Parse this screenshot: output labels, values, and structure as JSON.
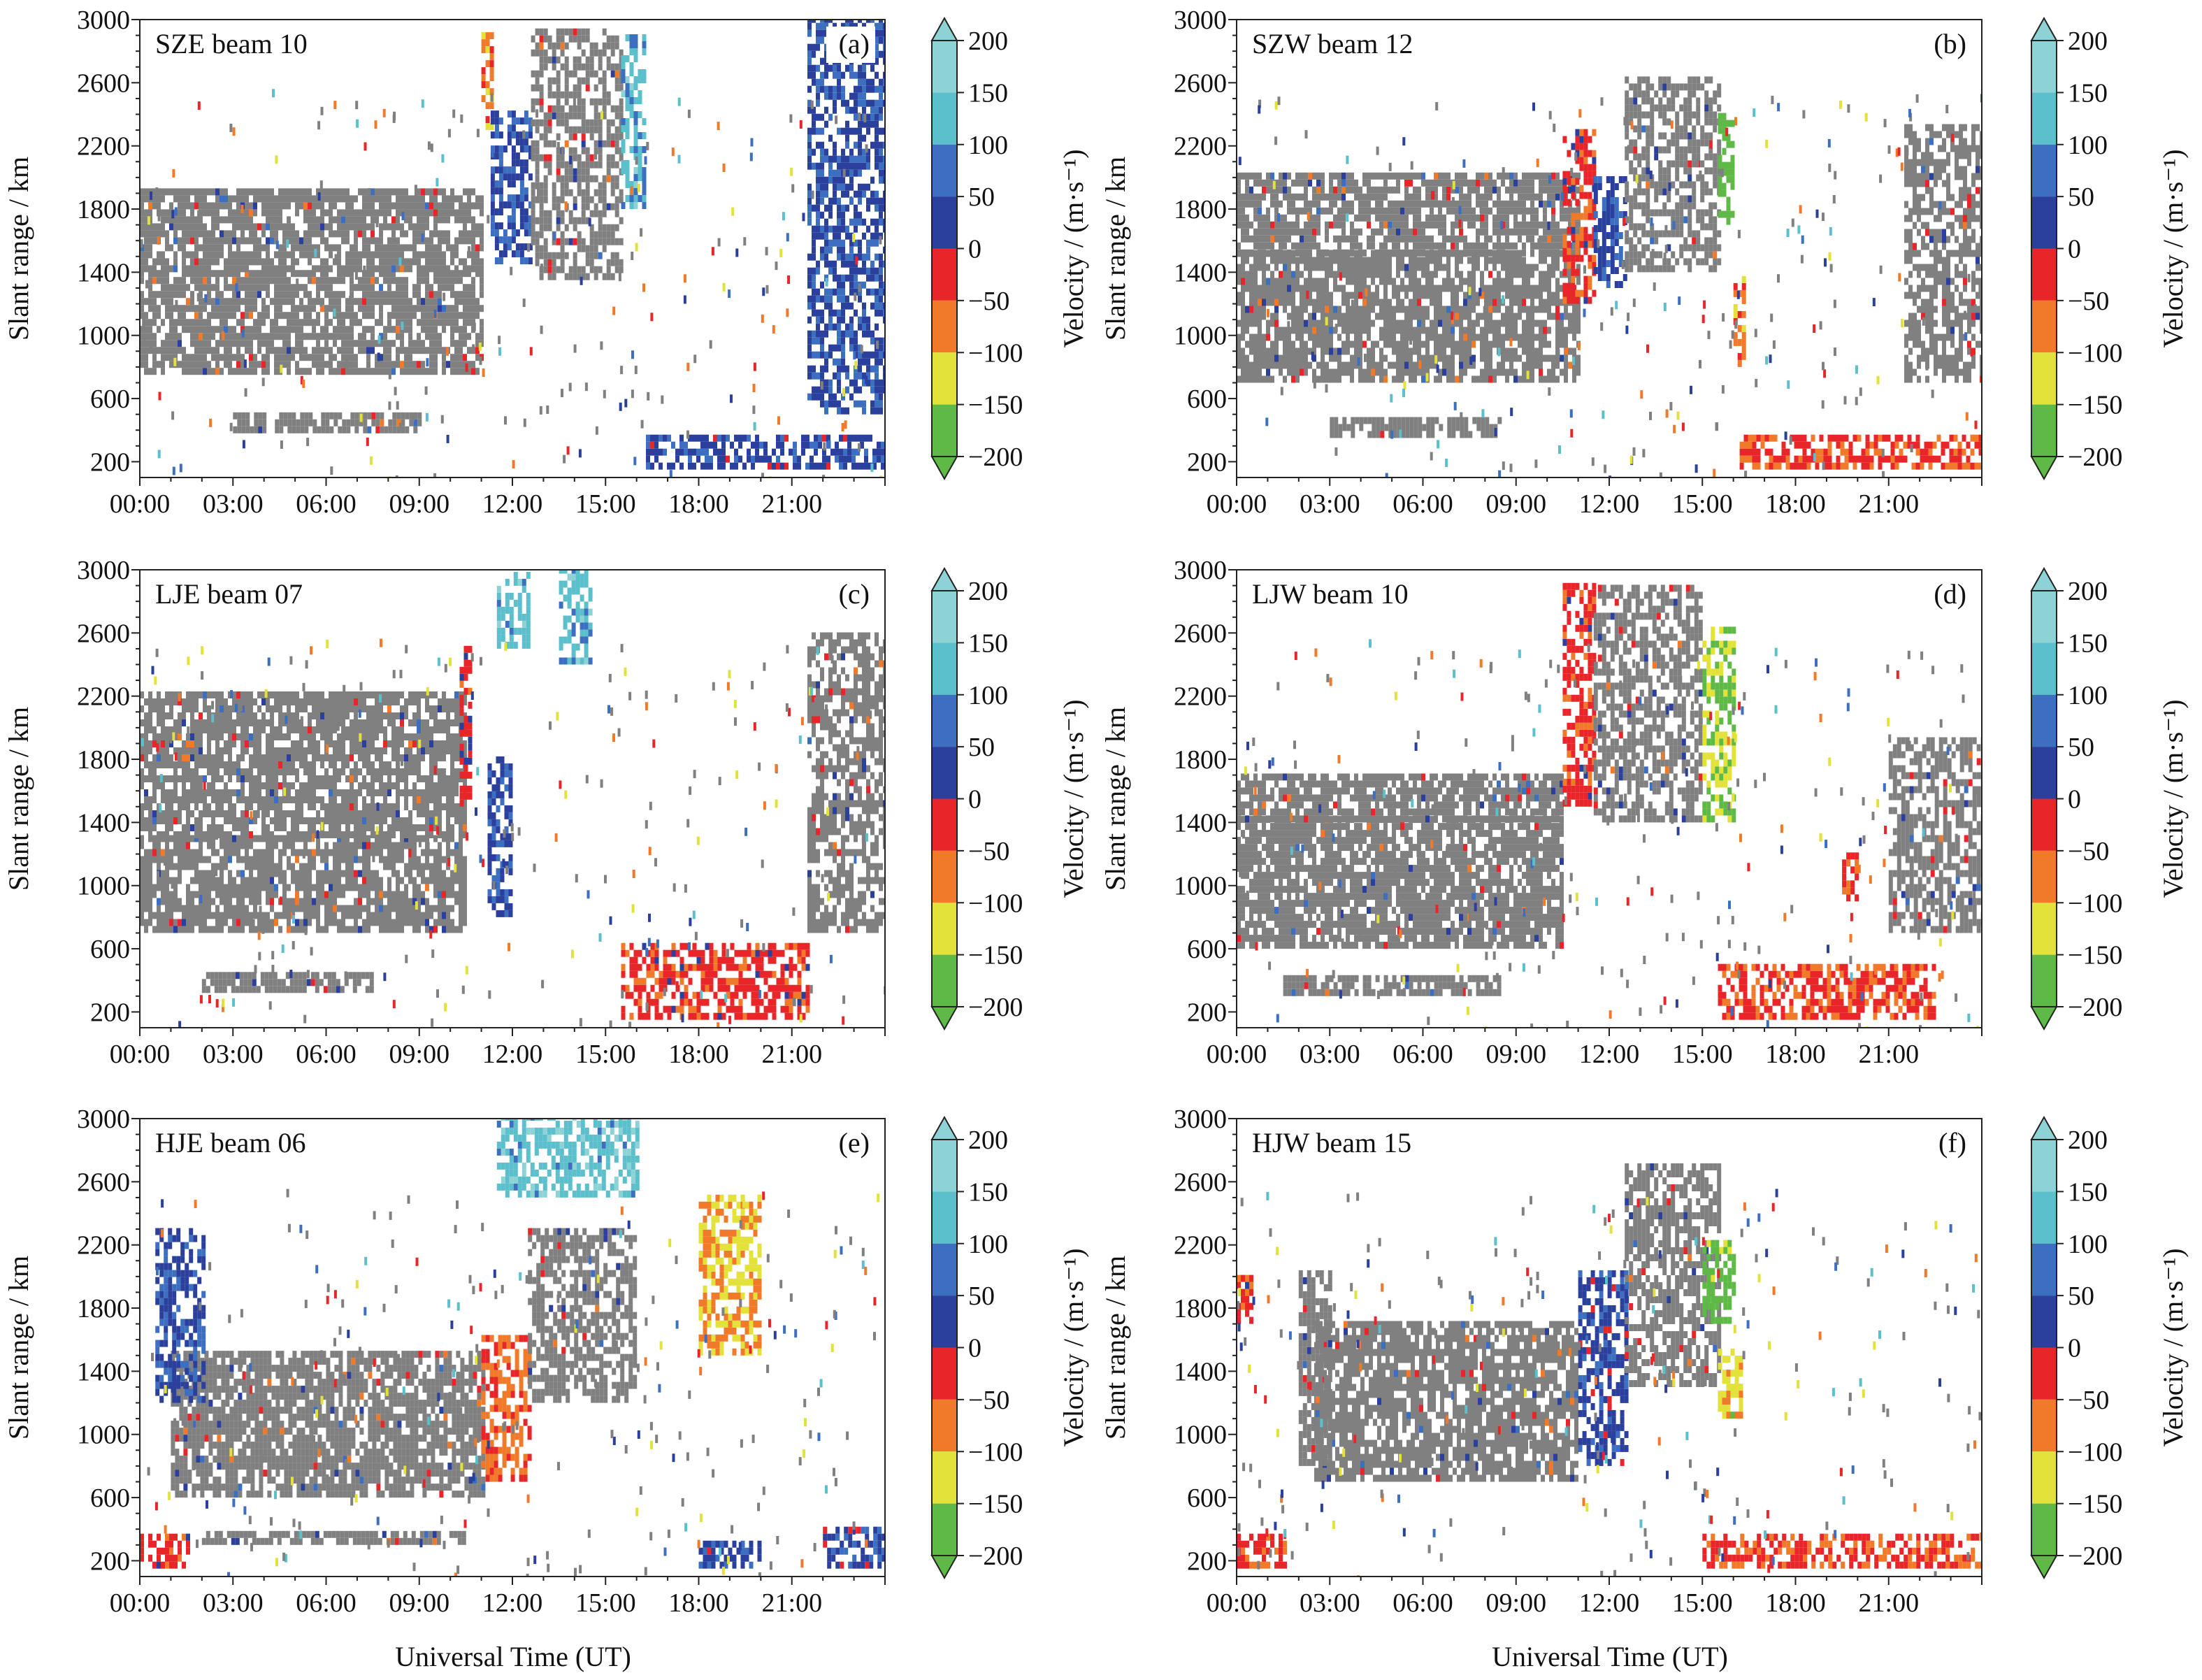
{
  "figure": {
    "xlabel": "Universal Time (UT)",
    "colorbar": {
      "label": "Velocity / (m·s⁻¹)",
      "ticks": [
        "200",
        "150",
        "100",
        "50",
        "0",
        "−50",
        "−100",
        "−150",
        "−200"
      ],
      "colors": [
        "#8dd3d5",
        "#5bbfcc",
        "#3d6fc0",
        "#2b3f9c",
        "#e8262a",
        "#f07a2a",
        "#e2e23a",
        "#5fb946"
      ],
      "extend_top_color": "#8dd3d5",
      "extend_bottom_color": "#5fb946"
    },
    "ground_scatter_color": "#808080"
  },
  "chart_data": [
    {
      "type": "heatmap",
      "panel": "(a)",
      "title": "SZE beam 10",
      "ylabel": "Slant range / km",
      "xlim": [
        "00:00",
        "24:00"
      ],
      "ylim": [
        100,
        3000
      ],
      "xticks": [
        "00:00",
        "03:00",
        "06:00",
        "09:00",
        "12:00",
        "15:00",
        "18:00",
        "21:00"
      ],
      "yticks": [
        "200",
        "600",
        "1000",
        "1400",
        "1800",
        "2200",
        "2600",
        "3000"
      ],
      "gs_bands": [
        [
          0.0,
          11.0,
          750,
          1400
        ],
        [
          0.0,
          11.0,
          1400,
          1900
        ],
        [
          3.0,
          9.0,
          380,
          480
        ]
      ],
      "echo_regions": [
        {
          "t": [
            11.0,
            11.3
          ],
          "r": [
            2300,
            2900
          ],
          "v": -75
        },
        {
          "t": [
            11.3,
            12.6
          ],
          "r": [
            1450,
            2400
          ],
          "v": 40
        },
        {
          "t": [
            12.6,
            15.5
          ],
          "r": [
            1350,
            2900
          ],
          "v": 0,
          "gs": true
        },
        {
          "t": [
            15.5,
            16.2
          ],
          "r": [
            1800,
            2900
          ],
          "v": 120
        },
        {
          "t": [
            16.3,
            24.0
          ],
          "r": [
            150,
            350
          ],
          "v": 30
        },
        {
          "t": [
            21.5,
            24.0
          ],
          "r": [
            500,
            3000
          ],
          "v": 40
        }
      ]
    },
    {
      "type": "heatmap",
      "panel": "(b)",
      "title": "SZW beam 12",
      "ylabel": "Slant range / km",
      "xlim": [
        "00:00",
        "24:00"
      ],
      "ylim": [
        100,
        3000
      ],
      "xticks": [
        "00:00",
        "03:00",
        "06:00",
        "09:00",
        "12:00",
        "15:00",
        "18:00",
        "21:00"
      ],
      "yticks": [
        "200",
        "600",
        "1000",
        "1400",
        "1800",
        "2200",
        "2600",
        "3000"
      ],
      "gs_bands": [
        [
          0.0,
          11.0,
          700,
          1500
        ],
        [
          0.0,
          11.0,
          1500,
          2000
        ],
        [
          3.0,
          8.5,
          350,
          450
        ]
      ],
      "echo_regions": [
        {
          "t": [
            10.5,
            11.5
          ],
          "r": [
            1200,
            2300
          ],
          "v": -30
        },
        {
          "t": [
            11.5,
            12.5
          ],
          "r": [
            1300,
            2000
          ],
          "v": 40
        },
        {
          "t": [
            12.5,
            15.5
          ],
          "r": [
            1400,
            2600
          ],
          "v": 0,
          "gs": true
        },
        {
          "t": [
            15.5,
            16.0
          ],
          "r": [
            1700,
            2400
          ],
          "v": -190
        },
        {
          "t": [
            16.0,
            16.4
          ],
          "r": [
            800,
            1400
          ],
          "v": -80
        },
        {
          "t": [
            16.2,
            24.0
          ],
          "r": [
            150,
            350
          ],
          "v": -40
        },
        {
          "t": [
            21.5,
            24.0
          ],
          "r": [
            700,
            2300
          ],
          "v": 0,
          "gs": true
        }
      ]
    },
    {
      "type": "heatmap",
      "panel": "(c)",
      "title": "LJE beam 07",
      "ylabel": "Slant range / km",
      "xlim": [
        "00:00",
        "24:00"
      ],
      "ylim": [
        100,
        3000
      ],
      "xticks": [
        "00:00",
        "03:00",
        "06:00",
        "09:00",
        "12:00",
        "15:00",
        "18:00",
        "21:00"
      ],
      "yticks": [
        "200",
        "600",
        "1000",
        "1400",
        "1800",
        "2200",
        "2600",
        "3000"
      ],
      "gs_bands": [
        [
          0.0,
          10.5,
          700,
          1300
        ],
        [
          0.0,
          10.5,
          1300,
          2200
        ],
        [
          2.0,
          7.5,
          320,
          420
        ]
      ],
      "echo_regions": [
        {
          "t": [
            10.3,
            10.7
          ],
          "r": [
            1500,
            2500
          ],
          "v": -20
        },
        {
          "t": [
            11.2,
            12.0
          ],
          "r": [
            800,
            1800
          ],
          "v": 40
        },
        {
          "t": [
            11.5,
            12.5
          ],
          "r": [
            2500,
            2950
          ],
          "v": 130
        },
        {
          "t": [
            13.5,
            14.5
          ],
          "r": [
            2400,
            3000
          ],
          "v": 120
        },
        {
          "t": [
            15.5,
            21.5
          ],
          "r": [
            150,
            600
          ],
          "v": -30
        },
        {
          "t": [
            21.5,
            24.0
          ],
          "r": [
            700,
            2600
          ],
          "v": 0,
          "gs": true
        }
      ]
    },
    {
      "type": "heatmap",
      "panel": "(d)",
      "title": "LJW beam 10",
      "ylabel": "Slant range / km",
      "xlim": [
        "00:00",
        "24:00"
      ],
      "ylim": [
        100,
        3000
      ],
      "xticks": [
        "00:00",
        "03:00",
        "06:00",
        "09:00",
        "12:00",
        "15:00",
        "18:00",
        "21:00"
      ],
      "yticks": [
        "200",
        "600",
        "1000",
        "1400",
        "1800",
        "2200",
        "2600",
        "3000"
      ],
      "gs_bands": [
        [
          0.0,
          10.5,
          600,
          1400
        ],
        [
          0.0,
          10.5,
          1400,
          1700
        ],
        [
          1.5,
          8.5,
          300,
          420
        ]
      ],
      "echo_regions": [
        {
          "t": [
            10.5,
            11.5
          ],
          "r": [
            1500,
            2900
          ],
          "v": -30
        },
        {
          "t": [
            11.5,
            15.0
          ],
          "r": [
            1400,
            2900
          ],
          "v": 0,
          "gs": true
        },
        {
          "t": [
            15.0,
            16.0
          ],
          "r": [
            1400,
            2600
          ],
          "v": -150
        },
        {
          "t": [
            19.5,
            20.0
          ],
          "r": [
            900,
            1200
          ],
          "v": -40
        },
        {
          "t": [
            21.0,
            24.0
          ],
          "r": [
            700,
            1900
          ],
          "v": 0,
          "gs": true
        },
        {
          "t": [
            15.5,
            22.5
          ],
          "r": [
            150,
            500
          ],
          "v": -40
        }
      ]
    },
    {
      "type": "heatmap",
      "panel": "(e)",
      "title": "HJE beam 06",
      "ylabel": "Slant range / km",
      "xlim": [
        "00:00",
        "24:00"
      ],
      "ylim": [
        100,
        3000
      ],
      "xticks": [
        "00:00",
        "03:00",
        "06:00",
        "09:00",
        "12:00",
        "15:00",
        "18:00",
        "21:00"
      ],
      "yticks": [
        "200",
        "600",
        "1000",
        "1400",
        "1800",
        "2200",
        "2600",
        "3000"
      ],
      "gs_bands": [
        [
          1.0,
          11.0,
          600,
          1500
        ],
        [
          2.0,
          10.5,
          300,
          380
        ]
      ],
      "echo_regions": [
        {
          "t": [
            0.0,
            1.5
          ],
          "r": [
            150,
            350
          ],
          "v": -30
        },
        {
          "t": [
            0.5,
            2.0
          ],
          "r": [
            1200,
            2300
          ],
          "v": 40
        },
        {
          "t": [
            11.0,
            12.5
          ],
          "r": [
            700,
            1600
          ],
          "v": -60
        },
        {
          "t": [
            12.5,
            16.0
          ],
          "r": [
            1200,
            2300
          ],
          "v": 0,
          "gs": true
        },
        {
          "t": [
            11.5,
            16.0
          ],
          "r": [
            2500,
            3000
          ],
          "v": 130
        },
        {
          "t": [
            18.0,
            20.0
          ],
          "r": [
            1500,
            2500
          ],
          "v": -100
        },
        {
          "t": [
            18.0,
            20.0
          ],
          "r": [
            150,
            300
          ],
          "v": 30
        },
        {
          "t": [
            22.0,
            24.0
          ],
          "r": [
            150,
            400
          ],
          "v": 30
        }
      ]
    },
    {
      "type": "heatmap",
      "panel": "(f)",
      "title": "HJW beam 15",
      "ylabel": "Slant range / km",
      "xlim": [
        "00:00",
        "24:00"
      ],
      "ylim": [
        100,
        3000
      ],
      "xticks": [
        "00:00",
        "03:00",
        "06:00",
        "09:00",
        "12:00",
        "15:00",
        "18:00",
        "21:00"
      ],
      "yticks": [
        "200",
        "600",
        "1000",
        "1400",
        "1800",
        "2200",
        "2600",
        "3000"
      ],
      "gs_bands": [
        [
          2.5,
          11.0,
          700,
          1700
        ],
        [
          2.0,
          3.0,
          800,
          2000
        ]
      ],
      "echo_regions": [
        {
          "t": [
            0.0,
            1.5
          ],
          "r": [
            150,
            350
          ],
          "v": -40
        },
        {
          "t": [
            0.0,
            0.5
          ],
          "r": [
            1700,
            2000
          ],
          "v": -30
        },
        {
          "t": [
            11.0,
            12.5
          ],
          "r": [
            800,
            2000
          ],
          "v": 30
        },
        {
          "t": [
            12.5,
            15.5
          ],
          "r": [
            1300,
            2700
          ],
          "v": 0,
          "gs": true
        },
        {
          "t": [
            15.0,
            16.0
          ],
          "r": [
            1700,
            2200
          ],
          "v": -180
        },
        {
          "t": [
            15.5,
            16.3
          ],
          "r": [
            1100,
            1500
          ],
          "v": -120
        },
        {
          "t": [
            15.0,
            24.0
          ],
          "r": [
            150,
            350
          ],
          "v": -40
        }
      ]
    }
  ]
}
